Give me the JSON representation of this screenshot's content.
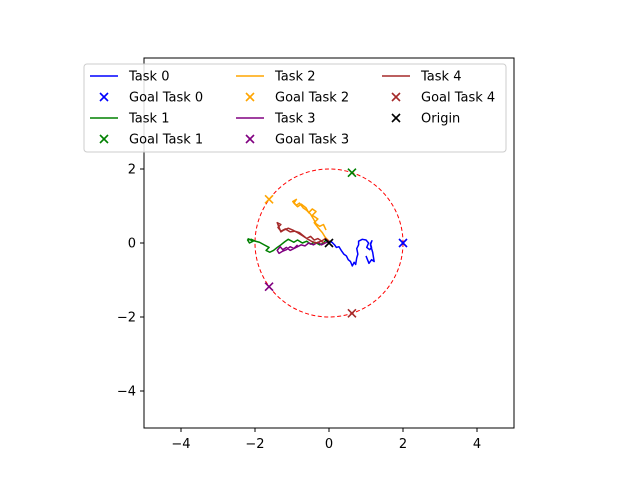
{
  "chart_data": {
    "type": "line",
    "title": "",
    "xlabel": "",
    "ylabel": "",
    "xlim": [
      -5,
      5
    ],
    "ylim": [
      -5,
      5
    ],
    "xticks": [
      -4,
      -2,
      0,
      2,
      4
    ],
    "yticks": [
      -4,
      -2,
      0,
      2
    ],
    "grid": false,
    "legend_placement": "top-left, 3 columns",
    "circle": {
      "center": [
        0,
        0
      ],
      "radius": 2,
      "color": "#ff0000",
      "style": "dashed"
    },
    "series": [
      {
        "name": "Task 0",
        "color": "#0000ff",
        "points": [
          [
            0,
            0.05
          ],
          [
            0.08,
            0.02
          ],
          [
            0.15,
            -0.05
          ],
          [
            0.2,
            -0.12
          ],
          [
            0.27,
            -0.1
          ],
          [
            0.33,
            -0.2
          ],
          [
            0.4,
            -0.3
          ],
          [
            0.47,
            -0.35
          ],
          [
            0.52,
            -0.45
          ],
          [
            0.58,
            -0.5
          ],
          [
            0.63,
            -0.62
          ],
          [
            0.68,
            -0.52
          ],
          [
            0.72,
            -0.58
          ],
          [
            0.75,
            -0.4
          ],
          [
            0.78,
            -0.3
          ],
          [
            0.75,
            -0.15
          ],
          [
            0.8,
            -0.05
          ],
          [
            0.8,
            0.05
          ],
          [
            0.9,
            0.1
          ],
          [
            1.0,
            0.08
          ],
          [
            1.07,
            0.0
          ],
          [
            1.02,
            -0.12
          ],
          [
            1.1,
            -0.18
          ],
          [
            1.15,
            -0.12
          ],
          [
            1.12,
            -0.02
          ],
          [
            1.16,
            0.06
          ],
          [
            1.12,
            -0.05
          ],
          [
            1.18,
            -0.25
          ],
          [
            1.22,
            -0.5
          ],
          [
            1.15,
            -0.45
          ],
          [
            1.08,
            -0.55
          ],
          [
            1.0,
            -0.35
          ]
        ]
      },
      {
        "name": "Task 1",
        "color": "#008000",
        "points": [
          [
            0,
            0.05
          ],
          [
            -0.08,
            0.08
          ],
          [
            -0.15,
            0.0
          ],
          [
            -0.25,
            -0.05
          ],
          [
            -0.38,
            0.02
          ],
          [
            -0.5,
            -0.03
          ],
          [
            -0.6,
            0.05
          ],
          [
            -0.72,
            0.0
          ],
          [
            -0.85,
            0.08
          ],
          [
            -0.95,
            0.02
          ],
          [
            -1.1,
            0.1
          ],
          [
            -1.2,
            0.03
          ],
          [
            -1.3,
            -0.05
          ],
          [
            -1.4,
            -0.12
          ],
          [
            -1.5,
            -0.2
          ],
          [
            -1.6,
            -0.25
          ],
          [
            -1.7,
            -0.2
          ],
          [
            -1.62,
            -0.12
          ],
          [
            -1.75,
            -0.05
          ],
          [
            -1.88,
            0.02
          ],
          [
            -2.0,
            0.05
          ],
          [
            -2.1,
            0.1
          ],
          [
            -2.2,
            0.08
          ],
          [
            -2.15,
            0.0
          ],
          [
            -2.05,
            0.05
          ],
          [
            -2.2,
            0.12
          ]
        ]
      },
      {
        "name": "Task 2",
        "color": "#ffa500",
        "points": [
          [
            0,
            0.05
          ],
          [
            -0.1,
            0.15
          ],
          [
            -0.18,
            0.28
          ],
          [
            -0.3,
            0.42
          ],
          [
            -0.4,
            0.55
          ],
          [
            -0.3,
            0.65
          ],
          [
            -0.45,
            0.75
          ],
          [
            -0.35,
            0.85
          ],
          [
            -0.45,
            0.92
          ],
          [
            -0.55,
            0.82
          ],
          [
            -0.62,
            0.95
          ],
          [
            -0.75,
            1.05
          ],
          [
            -0.85,
            0.98
          ],
          [
            -0.95,
            1.08
          ],
          [
            -0.88,
            1.18
          ],
          [
            -0.98,
            1.12
          ],
          [
            -0.88,
            1.02
          ],
          [
            -0.8,
            1.08
          ],
          [
            -0.7,
            0.95
          ],
          [
            -0.6,
            0.88
          ],
          [
            -0.5,
            0.78
          ],
          [
            -0.42,
            0.65
          ],
          [
            -0.35,
            0.52
          ],
          [
            -0.25,
            0.45
          ],
          [
            -0.15,
            0.5
          ],
          [
            -0.08,
            0.35
          ]
        ]
      },
      {
        "name": "Task 3",
        "color": "#800080",
        "points": [
          [
            0,
            0.05
          ],
          [
            -0.1,
            0.0
          ],
          [
            -0.2,
            -0.05
          ],
          [
            -0.3,
            0.02
          ],
          [
            -0.42,
            -0.05
          ],
          [
            -0.55,
            0.0
          ],
          [
            -0.65,
            -0.08
          ],
          [
            -0.75,
            -0.05
          ],
          [
            -0.85,
            -0.1
          ],
          [
            -0.95,
            -0.15
          ],
          [
            -1.05,
            -0.2
          ],
          [
            -1.15,
            -0.12
          ],
          [
            -1.25,
            -0.18
          ],
          [
            -1.32,
            -0.1
          ],
          [
            -1.4,
            -0.2
          ],
          [
            -1.35,
            -0.28
          ],
          [
            -1.25,
            -0.22
          ],
          [
            -1.15,
            -0.18
          ],
          [
            -1.05,
            -0.1
          ],
          [
            -0.95,
            -0.15
          ],
          [
            -0.85,
            -0.05
          ]
        ]
      },
      {
        "name": "Task 4",
        "color": "#a52a2a",
        "points": [
          [
            0,
            0.05
          ],
          [
            -0.1,
            0.12
          ],
          [
            -0.2,
            0.05
          ],
          [
            -0.3,
            0.12
          ],
          [
            -0.4,
            0.08
          ],
          [
            -0.5,
            0.18
          ],
          [
            -0.6,
            0.12
          ],
          [
            -0.7,
            0.2
          ],
          [
            -0.8,
            0.28
          ],
          [
            -0.92,
            0.32
          ],
          [
            -1.05,
            0.3
          ],
          [
            -1.18,
            0.38
          ],
          [
            -1.3,
            0.32
          ],
          [
            -1.38,
            0.42
          ],
          [
            -1.3,
            0.5
          ],
          [
            -1.4,
            0.55
          ],
          [
            -1.35,
            0.42
          ],
          [
            -1.3,
            0.3
          ],
          [
            -1.22,
            0.35
          ],
          [
            -1.1,
            0.4
          ],
          [
            -0.98,
            0.35
          ],
          [
            -0.85,
            0.28
          ],
          [
            -0.72,
            0.2
          ],
          [
            -0.6,
            0.12
          ],
          [
            -0.48,
            0.05
          ],
          [
            -0.35,
            0.0
          ],
          [
            -0.22,
            0.05
          ],
          [
            -0.12,
            0.0
          ]
        ]
      }
    ],
    "goals": [
      {
        "name": "Goal Task 0",
        "color": "#0000ff",
        "x": 2.0,
        "y": 0.0
      },
      {
        "name": "Goal Task 1",
        "color": "#008000",
        "x": 0.62,
        "y": 1.9
      },
      {
        "name": "Goal Task 2",
        "color": "#ffa500",
        "x": -1.62,
        "y": 1.18
      },
      {
        "name": "Goal Task 3",
        "color": "#800080",
        "x": -1.62,
        "y": -1.18
      },
      {
        "name": "Goal Task 4",
        "color": "#a52a2a",
        "x": 0.62,
        "y": -1.9
      }
    ],
    "origin": {
      "name": "Origin",
      "color": "#000000",
      "x": 0,
      "y": 0
    },
    "legend": [
      {
        "label": "Task 0",
        "kind": "line",
        "color": "#0000ff"
      },
      {
        "label": "Goal Task 0",
        "kind": "marker",
        "color": "#0000ff"
      },
      {
        "label": "Task 1",
        "kind": "line",
        "color": "#008000"
      },
      {
        "label": "Goal Task 1",
        "kind": "marker",
        "color": "#008000"
      },
      {
        "label": "Task 2",
        "kind": "line",
        "color": "#ffa500"
      },
      {
        "label": "Goal Task 2",
        "kind": "marker",
        "color": "#ffa500"
      },
      {
        "label": "Task 3",
        "kind": "line",
        "color": "#800080"
      },
      {
        "label": "Goal Task 3",
        "kind": "marker",
        "color": "#800080"
      },
      {
        "label": "Task 4",
        "kind": "line",
        "color": "#a52a2a"
      },
      {
        "label": "Goal Task 4",
        "kind": "marker",
        "color": "#a52a2a"
      },
      {
        "label": "Origin",
        "kind": "marker",
        "color": "#000000"
      }
    ]
  }
}
